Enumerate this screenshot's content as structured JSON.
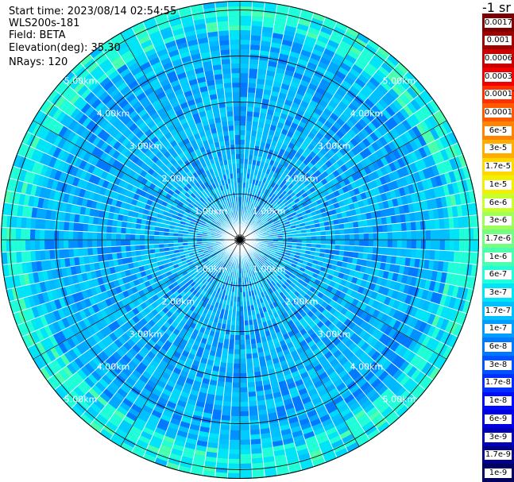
{
  "header": {
    "start_time": "Start time: 2023/08/14 02:54:55",
    "instrument": "WLS200s-181",
    "field": "Field: BETA",
    "elevation": "Elevation(deg): 35.30",
    "nrays": "NRays: 120"
  },
  "chart_data": {
    "type": "heatmap",
    "projection": "polar-ppi",
    "nrays": 120,
    "range_rings_km": [
      1.0,
      2.0,
      3.0,
      4.0,
      5.0
    ],
    "ring_labels": [
      "1.00km",
      "2.00km",
      "3.00km",
      "4.00km",
      "5.00km"
    ],
    "max_range_km": 5.2,
    "spoke_angles_deg": [
      0,
      30,
      60,
      90,
      120,
      150,
      180,
      210,
      240,
      270,
      300,
      330
    ],
    "grid": true,
    "colorbar": {
      "units": "-1 sr",
      "position": "right",
      "levels": [
        {
          "label": "0.0017",
          "color": "#7f0000"
        },
        {
          "label": "0.001",
          "color": "#a00000"
        },
        {
          "label": "0.0006",
          "color": "#c80000"
        },
        {
          "label": "0.0003",
          "color": "#f00000"
        },
        {
          "label": "0.00017",
          "color": "#ff3000"
        },
        {
          "label": "0.0001",
          "color": "#ff5a00"
        },
        {
          "label": "6e-5",
          "color": "#ff8400"
        },
        {
          "label": "3e-5",
          "color": "#ffae00"
        },
        {
          "label": "1.7e-5",
          "color": "#ffd800"
        },
        {
          "label": "1e-5",
          "color": "#f0f000"
        },
        {
          "label": "6e-6",
          "color": "#c8ff2f"
        },
        {
          "label": "3e-6",
          "color": "#9eff59"
        },
        {
          "label": "1.7e-6",
          "color": "#74ff83"
        },
        {
          "label": "1e-6",
          "color": "#4affad"
        },
        {
          "label": "6e-7",
          "color": "#20ffd7"
        },
        {
          "label": "3e-7",
          "color": "#00e4f8"
        },
        {
          "label": "1.7e-7",
          "color": "#00c0ff"
        },
        {
          "label": "1e-7",
          "color": "#009cff"
        },
        {
          "label": "6e-8",
          "color": "#0078ff"
        },
        {
          "label": "3e-8",
          "color": "#0054ff"
        },
        {
          "label": "1.7e-8",
          "color": "#0030ff"
        },
        {
          "label": "1e-8",
          "color": "#000cff"
        },
        {
          "label": "6e-9",
          "color": "#0000e0"
        },
        {
          "label": "3e-9",
          "color": "#0000b4"
        },
        {
          "label": "1.7e-9",
          "color": "#000088"
        },
        {
          "label": "1e-9",
          "color": "#000060"
        }
      ]
    }
  }
}
